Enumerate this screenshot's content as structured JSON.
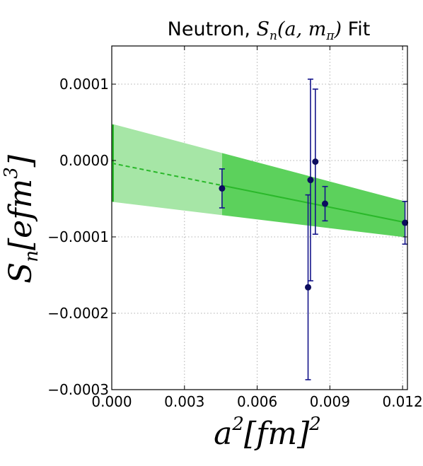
{
  "chart_data": {
    "type": "scatter",
    "title": {
      "prefix": "Neutron, ",
      "math_main": "S",
      "math_sub": "n",
      "math_args": "(a, m",
      "math_args_sub": "π",
      "math_close": ")",
      "suffix": " Fit"
    },
    "xlabel": {
      "main": "a",
      "sup1": "2",
      "bracket": "[fm]",
      "sup2": "2"
    },
    "ylabel": {
      "main": "S",
      "sub": "n",
      "bracket_open": "[efm",
      "sup": "3",
      "bracket_close": "]"
    },
    "xlim": [
      0.0,
      0.0122
    ],
    "ylim": [
      -0.0003,
      0.00015
    ],
    "x_ticks": [
      {
        "value": 0.0,
        "label": "0.000"
      },
      {
        "value": 0.003,
        "label": "0.003"
      },
      {
        "value": 0.006,
        "label": "0.006"
      },
      {
        "value": 0.009,
        "label": "0.009"
      },
      {
        "value": 0.012,
        "label": "0.012"
      }
    ],
    "y_ticks": [
      {
        "value": 0.0001,
        "label": "0.0001"
      },
      {
        "value": 0.0,
        "label": "0.0000"
      },
      {
        "value": -0.0001,
        "label": "−0.0001"
      },
      {
        "value": -0.0002,
        "label": "−0.0002"
      },
      {
        "value": -0.0003,
        "label": "−0.0003"
      }
    ],
    "grid": true,
    "points": [
      {
        "x": 0.00455,
        "y": -3.65e-05,
        "err": 2.55e-05
      },
      {
        "x": 0.0081,
        "y": -0.000166,
        "err": 0.000121
      },
      {
        "x": 0.0082,
        "y": -2.55e-05,
        "err": 0.000132
      },
      {
        "x": 0.0084,
        "y": -1.5e-06,
        "err": 9.5e-05
      },
      {
        "x": 0.0088,
        "y": -5.65e-05,
        "err": 2.25e-05
      },
      {
        "x": 0.0121,
        "y": -8.15e-05,
        "err": 2.8e-05
      }
    ],
    "fit": {
      "x_extrapolated": [
        0.0,
        0.00455
      ],
      "x_data_range": [
        0.00455,
        0.0121
      ],
      "central": [
        -3.5e-06,
        -8.1e-05
      ],
      "lower": [
        -5.4e-05,
        -0.0001005
      ],
      "upper": [
        4.8e-05,
        -5.35e-05
      ],
      "continuum_value": -3.5e-06,
      "continuum_error": 5.05e-05
    },
    "colors": {
      "points": "#0c0c5e",
      "errorbars": "#14148a",
      "fit_line": "#2ab82a",
      "band_data": "#5cd15c",
      "band_extrapolated": "#a6e6a6",
      "continuum_bar": "#2ab82a"
    }
  }
}
